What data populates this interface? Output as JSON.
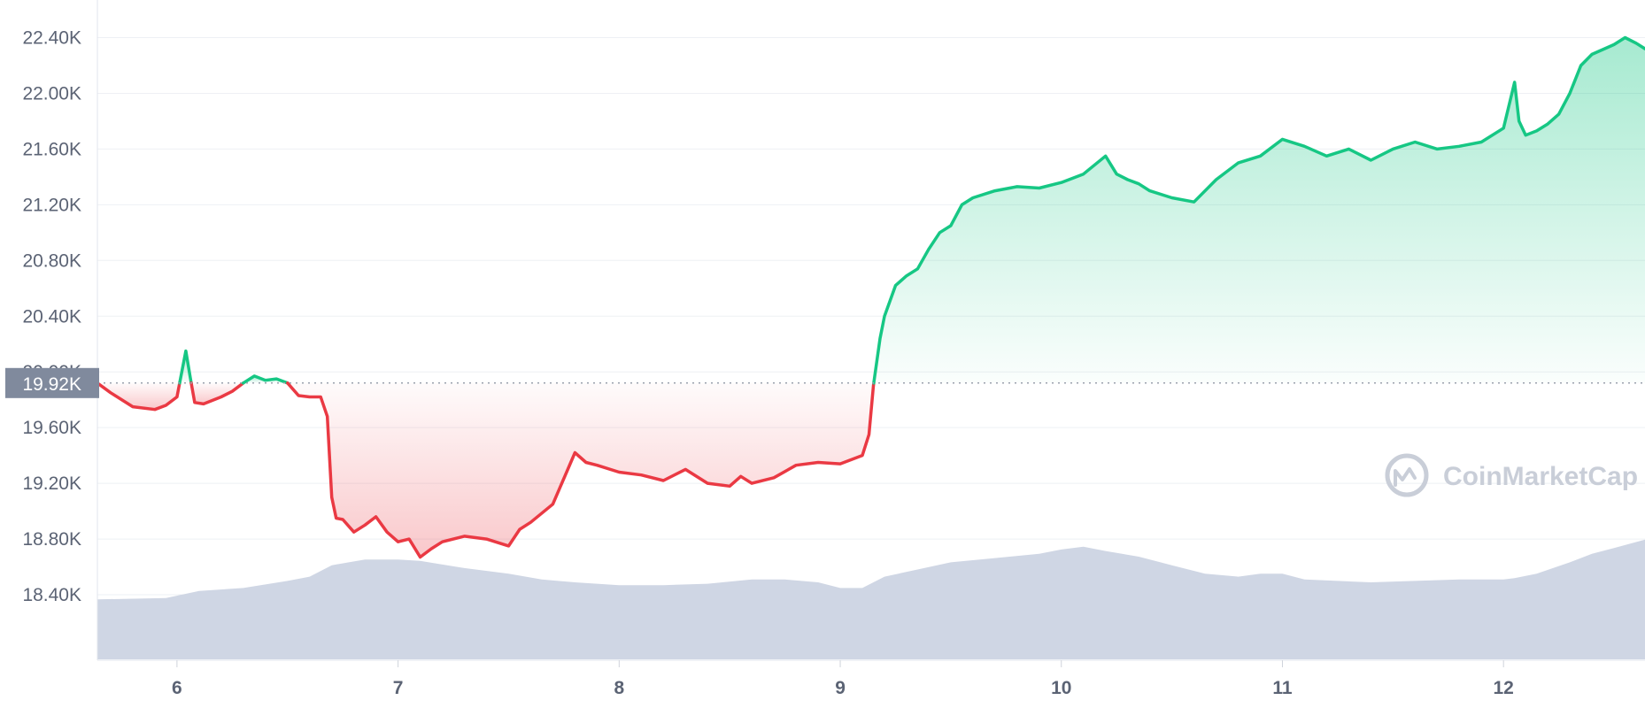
{
  "chart_data": {
    "type": "area",
    "title": "",
    "xlabel": "",
    "ylabel": "",
    "y_ticks": [
      "22.40K",
      "22.00K",
      "21.60K",
      "21.20K",
      "20.80K",
      "20.40K",
      "20.00K",
      "19.60K",
      "19.20K",
      "18.80K",
      "18.40K"
    ],
    "y_tick_values": [
      22400,
      22000,
      21600,
      21200,
      20800,
      20400,
      20000,
      19600,
      19200,
      18800,
      18400
    ],
    "x_ticks": [
      "6",
      "7",
      "8",
      "9",
      "10",
      "11",
      "12"
    ],
    "x_tick_values": [
      6,
      7,
      8,
      9,
      10,
      11,
      12
    ],
    "xlim": [
      5.64,
      12.64
    ],
    "ylim": [
      17.93,
      22.67
    ],
    "reference_value": 19920,
    "reference_label": "19.92K",
    "grid": true,
    "colors": {
      "up": "#16c784",
      "down": "#ea3943",
      "volume": "#cfd6e4",
      "grid": "#eef0f4",
      "reference_label_bg": "#808a9d"
    },
    "watermark": "CoinMarketCap",
    "series": [
      {
        "kind": "price",
        "x": [
          5.64,
          5.7,
          5.8,
          5.9,
          5.95,
          6.0,
          6.04,
          6.06,
          6.08,
          6.12,
          6.2,
          6.25,
          6.3,
          6.35,
          6.4,
          6.45,
          6.5,
          6.55,
          6.6,
          6.65,
          6.68,
          6.7,
          6.72,
          6.75,
          6.8,
          6.85,
          6.9,
          6.95,
          7.0,
          7.05,
          7.1,
          7.15,
          7.2,
          7.3,
          7.4,
          7.5,
          7.55,
          7.6,
          7.7,
          7.8,
          7.85,
          7.9,
          8.0,
          8.1,
          8.2,
          8.3,
          8.4,
          8.5,
          8.55,
          8.6,
          8.7,
          8.8,
          8.9,
          9.0,
          9.1,
          9.13,
          9.15,
          9.18,
          9.2,
          9.25,
          9.3,
          9.35,
          9.4,
          9.45,
          9.5,
          9.55,
          9.6,
          9.7,
          9.8,
          9.9,
          10.0,
          10.1,
          10.2,
          10.25,
          10.3,
          10.35,
          10.4,
          10.5,
          10.6,
          10.7,
          10.8,
          10.9,
          11.0,
          11.1,
          11.2,
          11.3,
          11.4,
          11.5,
          11.6,
          11.7,
          11.8,
          11.9,
          12.0,
          12.05,
          12.07,
          12.1,
          12.15,
          12.2,
          12.25,
          12.3,
          12.35,
          12.4,
          12.5,
          12.55,
          12.6,
          12.64
        ],
        "y": [
          19.92,
          19.85,
          19.75,
          19.73,
          19.76,
          19.82,
          20.15,
          19.96,
          19.78,
          19.77,
          19.82,
          19.86,
          19.92,
          19.97,
          19.94,
          19.95,
          19.92,
          19.83,
          19.82,
          19.82,
          19.68,
          19.1,
          18.95,
          18.94,
          18.85,
          18.9,
          18.96,
          18.85,
          18.78,
          18.8,
          18.67,
          18.73,
          18.78,
          18.82,
          18.8,
          18.75,
          18.87,
          18.92,
          19.05,
          19.42,
          19.35,
          19.33,
          19.28,
          19.26,
          19.22,
          19.3,
          19.2,
          19.18,
          19.25,
          19.2,
          19.24,
          19.33,
          19.35,
          19.34,
          19.4,
          19.55,
          19.9,
          20.24,
          20.4,
          20.62,
          20.69,
          20.74,
          20.88,
          21.0,
          21.05,
          21.2,
          21.25,
          21.3,
          21.33,
          21.32,
          21.36,
          21.42,
          21.55,
          21.42,
          21.38,
          21.35,
          21.3,
          21.25,
          21.22,
          21.38,
          21.5,
          21.55,
          21.67,
          21.62,
          21.55,
          21.6,
          21.52,
          21.6,
          21.65,
          21.6,
          21.62,
          21.65,
          21.75,
          22.08,
          21.8,
          21.7,
          21.73,
          21.78,
          21.85,
          22.0,
          22.2,
          22.28,
          22.35,
          22.4,
          22.36,
          22.32
        ]
      },
      {
        "kind": "volume",
        "x": [
          5.64,
          5.95,
          6.1,
          6.3,
          6.5,
          6.6,
          6.7,
          6.85,
          7.0,
          7.1,
          7.3,
          7.5,
          7.65,
          7.8,
          8.0,
          8.2,
          8.4,
          8.6,
          8.75,
          8.9,
          9.0,
          9.1,
          9.2,
          9.35,
          9.5,
          9.7,
          9.9,
          10.0,
          10.1,
          10.2,
          10.35,
          10.5,
          10.65,
          10.8,
          10.9,
          11.0,
          11.1,
          11.25,
          11.4,
          11.6,
          11.8,
          12.0,
          12.05,
          12.15,
          12.3,
          12.4,
          12.5,
          12.64
        ],
        "y": [
          0.42,
          0.43,
          0.48,
          0.5,
          0.55,
          0.58,
          0.66,
          0.7,
          0.7,
          0.69,
          0.64,
          0.6,
          0.56,
          0.54,
          0.52,
          0.52,
          0.53,
          0.56,
          0.56,
          0.54,
          0.5,
          0.5,
          0.58,
          0.63,
          0.68,
          0.71,
          0.74,
          0.77,
          0.79,
          0.76,
          0.72,
          0.66,
          0.6,
          0.58,
          0.6,
          0.6,
          0.56,
          0.55,
          0.54,
          0.55,
          0.56,
          0.56,
          0.57,
          0.6,
          0.68,
          0.74,
          0.78,
          0.84
        ]
      }
    ]
  }
}
